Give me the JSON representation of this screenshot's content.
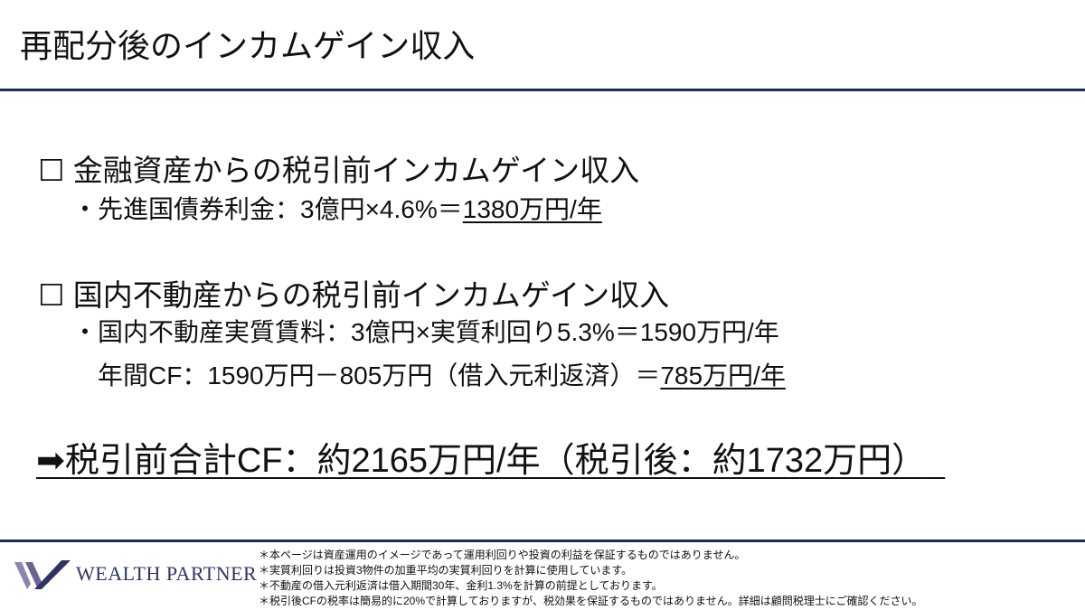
{
  "title": "再配分後のインカムゲイン収入",
  "section1": {
    "checkbox": "☐",
    "heading": "金融資産からの税引前インカムゲイン収入",
    "line1_prefix": "・先進国債券利金：3億円×4.6%＝",
    "line1_result": "1380万円/年"
  },
  "section2": {
    "checkbox": "☐",
    "heading": "国内不動産からの税引前インカムゲイン収入",
    "line1": "・国内不動産実質賃料：3億円×実質利回り5.3%＝1590万円/年",
    "line2_prefix": "年間CF：1590万円－805万円（借入元利返済）＝",
    "line2_result": "785万円/年"
  },
  "total": {
    "arrow": "➡",
    "text": "税引前合計CF：約2165万円/年（税引後：約1732万円）"
  },
  "footer": {
    "logo_text": "WEALTH PARTNER",
    "notes": [
      "＊本ページは資産運用のイメージであって運用利回りや投資の利益を保証するものではありません。",
      "＊実質利回りは投資3物件の加重平均の実質利回りを計算に使用しています。",
      "＊不動産の借入元利返済は借入期間30年、金利1.3%を計算の前提としております。",
      "＊税引後CFの税率は簡易的に20%で計算しておりますが、税効果を保証するものではありません。詳細は顧問税理士にご確認ください。"
    ]
  },
  "colors": {
    "navy": "#1c2c5c",
    "logo": "#2d3563"
  }
}
